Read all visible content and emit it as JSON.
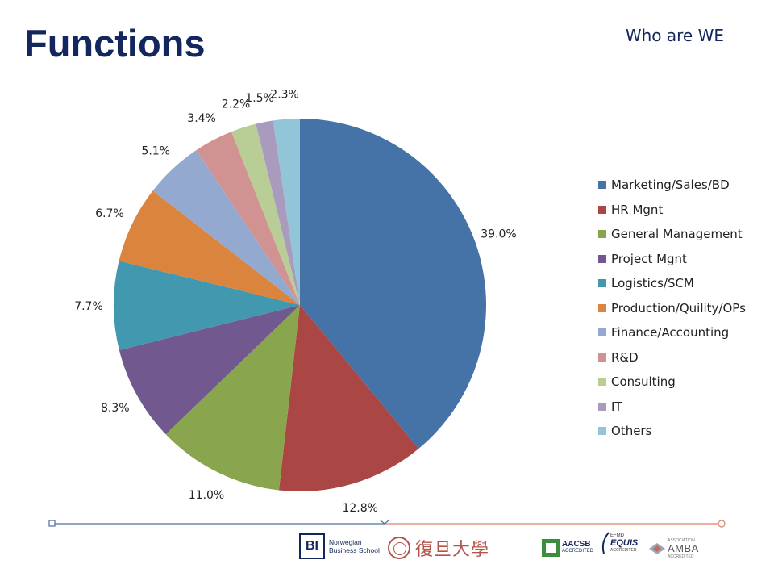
{
  "slide": {
    "title": "Functions",
    "section_label": "Who are WE"
  },
  "chart_data": {
    "type": "pie",
    "title": "",
    "start_angle": "12 o'clock",
    "direction": "clockwise",
    "legend_position": "right",
    "categories": [
      "Marketing/Sales/BD",
      "HR Mgnt",
      "General Management",
      "Project Mgnt",
      "Logistics/SCM",
      "Production/Quility/OPs",
      "Finance/Accounting",
      "R&D",
      "Consulting",
      "IT",
      "Others"
    ],
    "values": [
      39.0,
      12.8,
      11.0,
      8.3,
      7.7,
      6.7,
      5.1,
      3.4,
      2.2,
      1.5,
      2.3
    ],
    "value_labels": [
      "39.0%",
      "12.8%",
      "11.0%",
      "8.3%",
      "7.7%",
      "6.7%",
      "5.1%",
      "3.4%",
      "2.2%",
      "1.5%",
      "2.3%"
    ],
    "colors": [
      "#4572a7",
      "#aa4643",
      "#89a54e",
      "#71588f",
      "#4198af",
      "#db843d",
      "#93a9cf",
      "#d19392",
      "#b9cd96",
      "#a99bbd",
      "#92c5d7"
    ]
  },
  "footer": {
    "line_colors": [
      "#4f6fa0",
      "#d9856a"
    ],
    "logos": {
      "bi_mark": "BI",
      "bi_name": [
        "Norwegian",
        "Business School"
      ],
      "fudan_name": "復旦大學",
      "aacsb_name": "AACSB",
      "aacsb_sub": "ACCREDITED",
      "equis_top": "EFMD",
      "equis_name": "EQUIS",
      "equis_sub": "ACCREDITED",
      "amba_top": "ASSOCIATION",
      "amba_name": "AMBA",
      "amba_sub": "ACCREDITED"
    }
  }
}
